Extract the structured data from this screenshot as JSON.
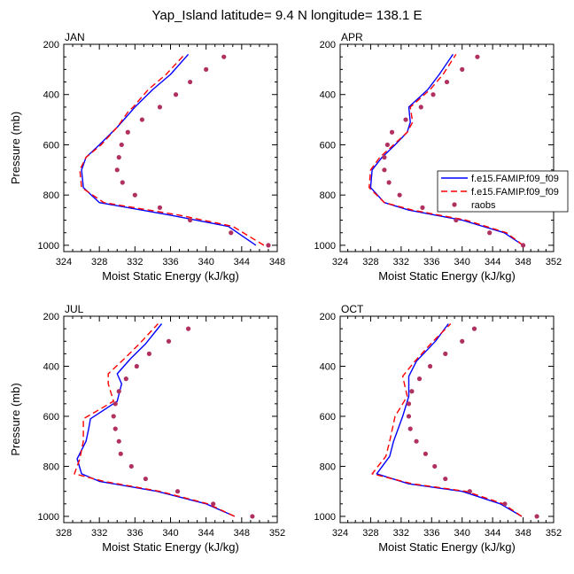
{
  "figure": {
    "title": "Yap_Island  latitude= 9.4 N longitude= 138.1 E"
  },
  "legend": {
    "entries": [
      "f.e15.FAMIP.f09_f09",
      "f.e15.FAMIP.f09_f09",
      "raobs"
    ]
  },
  "colors": {
    "series1": "#0000ff",
    "series2": "#ff0000",
    "raobs": "#b03060"
  },
  "chart_data": [
    {
      "type": "line",
      "panel_label": "JAN",
      "xlabel": "Moist Static Energy (kJ/kg)",
      "ylabel": "Pressure (mb)",
      "xlim": [
        324,
        348
      ],
      "xticks": [
        324,
        328,
        332,
        336,
        340,
        344,
        348
      ],
      "ylim": [
        200,
        1025
      ],
      "yticks": [
        200,
        400,
        600,
        800,
        1000
      ],
      "y_inverted": true,
      "series": [
        {
          "name": "f.e15.FAMIP.f09_f09",
          "style": "solid",
          "x": [
            345.6,
            342.5,
            336.0,
            328.0,
            326.2,
            326.0,
            326.5,
            328.0,
            330.0,
            331.5,
            332.0,
            334.0,
            336.0,
            338.0
          ],
          "y": [
            1000,
            925,
            880,
            830,
            770,
            700,
            650,
            600,
            530,
            470,
            450,
            380,
            320,
            240
          ]
        },
        {
          "name": "f.e15.FAMIP.f09_f09",
          "style": "dashed",
          "x": [
            346.5,
            343.0,
            337.0,
            328.5,
            326.0,
            325.8,
            326.5,
            328.2,
            330.0,
            331.2,
            331.8,
            333.5,
            335.5,
            337.6
          ],
          "y": [
            1000,
            925,
            880,
            830,
            770,
            700,
            650,
            600,
            530,
            470,
            450,
            380,
            320,
            240
          ]
        },
        {
          "name": "raobs",
          "style": "markers",
          "x": [
            347.0,
            342.8,
            338.2,
            334.8,
            332.0,
            330.6,
            330.0,
            330.2,
            330.5,
            331.2,
            332.8,
            334.8,
            336.6,
            338.2,
            340.0,
            342.0
          ],
          "y": [
            1000,
            950,
            900,
            850,
            800,
            750,
            700,
            650,
            600,
            550,
            500,
            450,
            400,
            350,
            300,
            250
          ]
        }
      ]
    },
    {
      "type": "line",
      "panel_label": "APR",
      "xlabel": "Moist Static Energy (kJ/kg)",
      "ylabel": "",
      "xlim": [
        324,
        352
      ],
      "xticks": [
        324,
        328,
        332,
        336,
        340,
        344,
        348,
        352
      ],
      "ylim": [
        200,
        1025
      ],
      "yticks": [
        200,
        400,
        600,
        800,
        1000
      ],
      "y_inverted": true,
      "series": [
        {
          "name": "f.e15.FAMIP.f09_f09",
          "style": "solid",
          "x": [
            348.0,
            345.5,
            340.0,
            333.0,
            329.8,
            328.0,
            328.2,
            329.5,
            331.2,
            332.8,
            333.2,
            333.0,
            335.5,
            337.0,
            338.8
          ],
          "y": [
            1000,
            950,
            900,
            860,
            830,
            770,
            700,
            650,
            600,
            550,
            510,
            450,
            380,
            320,
            240
          ]
        },
        {
          "name": "f.e15.FAMIP.f09_f09",
          "style": "dashed",
          "x": [
            348.0,
            345.8,
            340.5,
            333.5,
            329.8,
            327.8,
            328.0,
            329.2,
            331.0,
            332.8,
            333.5,
            333.2,
            335.8,
            337.5,
            339.2
          ],
          "y": [
            1000,
            950,
            900,
            860,
            830,
            770,
            700,
            650,
            600,
            550,
            510,
            450,
            380,
            320,
            240
          ]
        },
        {
          "name": "raobs",
          "style": "markers",
          "x": [
            348.0,
            343.6,
            339.2,
            334.8,
            331.8,
            330.4,
            329.8,
            329.8,
            330.2,
            330.8,
            332.6,
            334.6,
            336.2,
            338.0,
            340.0,
            342.0
          ],
          "y": [
            1000,
            950,
            900,
            850,
            800,
            750,
            700,
            650,
            600,
            550,
            500,
            450,
            400,
            350,
            300,
            250
          ]
        }
      ]
    },
    {
      "type": "line",
      "panel_label": "JUL",
      "xlabel": "Moist Static Energy (kJ/kg)",
      "ylabel": "Pressure (mb)",
      "xlim": [
        328,
        352
      ],
      "xticks": [
        328,
        332,
        336,
        340,
        344,
        348,
        352
      ],
      "ylim": [
        200,
        1025
      ],
      "yticks": [
        200,
        400,
        600,
        800,
        1000
      ],
      "y_inverted": true,
      "series": [
        {
          "name": "f.e15.FAMIP.f09_f09",
          "style": "solid",
          "x": [
            347.2,
            344.0,
            338.5,
            332.0,
            330.0,
            329.5,
            330.5,
            330.8,
            331.0,
            334.0,
            334.5,
            334.0,
            335.5,
            337.2,
            339.0
          ],
          "y": [
            1000,
            950,
            900,
            860,
            830,
            770,
            700,
            650,
            610,
            540,
            470,
            430,
            370,
            310,
            230
          ]
        },
        {
          "name": "f.e15.FAMIP.f09_f09",
          "style": "dashed",
          "x": [
            347.2,
            344.2,
            338.8,
            332.5,
            329.2,
            329.8,
            330.2,
            330.2,
            330.2,
            333.6,
            333.0,
            333.0,
            334.8,
            336.5,
            338.6
          ],
          "y": [
            1000,
            950,
            900,
            860,
            830,
            770,
            700,
            650,
            610,
            540,
            470,
            430,
            370,
            310,
            230
          ]
        },
        {
          "name": "raobs",
          "style": "markers",
          "x": [
            349.2,
            344.8,
            340.8,
            337.2,
            335.6,
            334.4,
            334.2,
            333.8,
            333.6,
            333.8,
            334.2,
            335.0,
            336.2,
            337.6,
            339.8,
            342.0
          ],
          "y": [
            1000,
            950,
            900,
            850,
            800,
            750,
            700,
            650,
            600,
            550,
            500,
            450,
            400,
            350,
            300,
            250
          ]
        }
      ]
    },
    {
      "type": "line",
      "panel_label": "OCT",
      "xlabel": "Moist Static Energy (kJ/kg)",
      "ylabel": "",
      "xlim": [
        324,
        352
      ],
      "xticks": [
        324,
        328,
        332,
        336,
        340,
        344,
        348,
        352
      ],
      "ylim": [
        200,
        1025
      ],
      "yticks": [
        200,
        400,
        600,
        800,
        1000
      ],
      "y_inverted": true,
      "series": [
        {
          "name": "f.e15.FAMIP.f09_f09",
          "style": "solid",
          "x": [
            347.8,
            345.0,
            340.0,
            333.0,
            328.8,
            330.5,
            331.0,
            332.2,
            333.0,
            333.0,
            334.0,
            336.5,
            338.2
          ],
          "y": [
            1000,
            950,
            900,
            870,
            830,
            760,
            700,
            600,
            520,
            440,
            380,
            300,
            230
          ]
        },
        {
          "name": "f.e15.FAMIP.f09_f09",
          "style": "dashed",
          "x": [
            347.8,
            345.4,
            340.5,
            333.5,
            328.2,
            330.0,
            330.5,
            331.2,
            332.8,
            332.2,
            333.8,
            336.2,
            338.5
          ],
          "y": [
            1000,
            950,
            900,
            870,
            830,
            760,
            700,
            600,
            520,
            440,
            380,
            300,
            230
          ]
        },
        {
          "name": "raobs",
          "style": "markers",
          "x": [
            349.8,
            345.6,
            341.0,
            337.8,
            336.4,
            335.2,
            334.0,
            333.2,
            333.0,
            333.0,
            333.4,
            334.4,
            335.8,
            337.8,
            340.0,
            341.6
          ],
          "y": [
            1000,
            950,
            900,
            850,
            800,
            750,
            700,
            650,
            600,
            550,
            500,
            450,
            400,
            350,
            300,
            250
          ]
        }
      ]
    }
  ]
}
